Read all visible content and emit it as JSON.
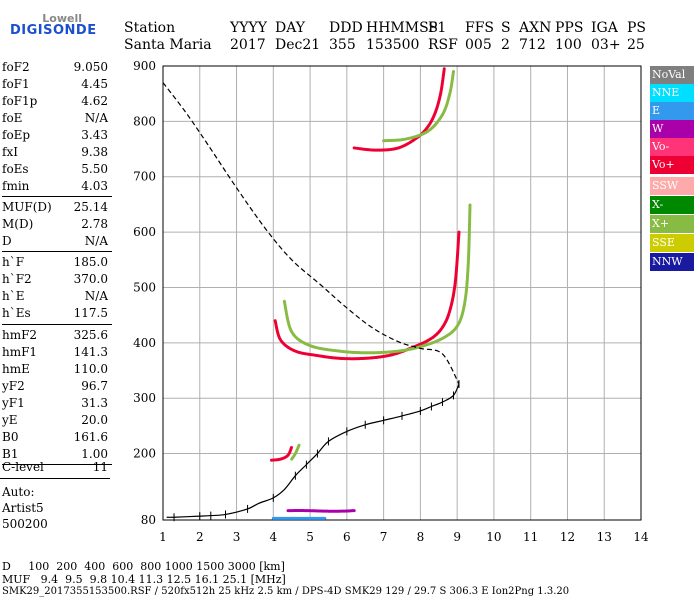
{
  "brand": {
    "line1": "Lowell",
    "line2": "DIGISONDE"
  },
  "header": {
    "labels": [
      "Station",
      "YYYY",
      "DAY",
      "DDD",
      "HHMMSS",
      "P1",
      "FFS",
      "S",
      "AXN",
      "PPS",
      "IGA",
      "PS"
    ],
    "values": [
      "Santa Maria",
      "2017",
      "Dec21",
      "355",
      "153500",
      "RSF",
      "005",
      "2",
      "712",
      "100",
      "03+",
      "25"
    ]
  },
  "params": [
    {
      "k": "foF2",
      "v": "9.050"
    },
    {
      "k": "foF1",
      "v": "4.45"
    },
    {
      "k": "foF1p",
      "v": "4.62"
    },
    {
      "k": "foE",
      "v": "N/A"
    },
    {
      "k": "foEp",
      "v": "3.43"
    },
    {
      "k": "fxI",
      "v": "9.38"
    },
    {
      "k": "foEs",
      "v": "5.50"
    },
    {
      "k": "fmin",
      "v": "4.03"
    },
    {
      "k": "MUF(D)",
      "v": "25.14"
    },
    {
      "k": "M(D)",
      "v": "2.78"
    },
    {
      "k": "D",
      "v": "N/A"
    },
    {
      "k": "h`F",
      "v": "185.0"
    },
    {
      "k": "h`F2",
      "v": "370.0"
    },
    {
      "k": "h`E",
      "v": "N/A"
    },
    {
      "k": "h`Es",
      "v": "117.5"
    },
    {
      "k": "hmF2",
      "v": "325.6"
    },
    {
      "k": "hmF1",
      "v": "141.3"
    },
    {
      "k": "hmE",
      "v": "110.0"
    },
    {
      "k": "yF2",
      "v": "96.7"
    },
    {
      "k": "yF1",
      "v": "31.3"
    },
    {
      "k": "yE",
      "v": "20.0"
    },
    {
      "k": "B0",
      "v": "161.6"
    },
    {
      "k": "B1",
      "v": "1.00"
    },
    {
      "k": "C-level",
      "v": "11"
    }
  ],
  "auto": {
    "line1": "Auto:",
    "line2": "Artist5",
    "line3": "500200"
  },
  "legend": [
    {
      "label": "NoVal",
      "color": "#7f7f7f"
    },
    {
      "label": "NNE",
      "color": "#00dfff"
    },
    {
      "label": "E",
      "color": "#3399ee"
    },
    {
      "label": "W",
      "color": "#aa00aa"
    },
    {
      "label": "Vo-",
      "color": "#ff3377"
    },
    {
      "label": "Vo+",
      "color": "#ee0033"
    },
    {
      "label": "SSW",
      "color": "#ffaaaa"
    },
    {
      "label": "X-",
      "color": "#008800"
    },
    {
      "label": "X+",
      "color": "#88bb44"
    },
    {
      "label": "SSE",
      "color": "#cccc00"
    },
    {
      "label": "NNW",
      "color": "#1a1aa0"
    }
  ],
  "bottom": {
    "d_row": "D     100  200  400  600  800 1000 1500 3000 [km]",
    "muf_row": "MUF   9.4  9.5  9.8 10.4 11.3 12.5 16.1 25.1 [MHz]",
    "footer": "SMK29_2017355153500.RSF / 520fx512h 25 kHz 2.5 km / DPS-4D SMK29 129 / 29.7 S 306.3 E Ion2Png 1.3.20"
  },
  "chart_data": {
    "type": "scatter",
    "xlim": [
      1,
      14
    ],
    "ylim": [
      80,
      900
    ],
    "xticks": [
      1,
      2,
      3,
      4,
      5,
      6,
      7,
      8,
      9,
      10,
      11,
      12,
      13,
      14
    ],
    "yticks": [
      80,
      200,
      300,
      400,
      500,
      600,
      700,
      800,
      900
    ],
    "grid": true,
    "profile": {
      "x": [
        1.1,
        1.3,
        2.0,
        2.3,
        2.7,
        3.3,
        3.6,
        4.0,
        4.3,
        4.6,
        4.9,
        5.2,
        5.5,
        6.0,
        6.5,
        7.0,
        7.5,
        8.0,
        8.3,
        8.6,
        8.9,
        9.05
      ],
      "y": [
        85,
        85,
        87,
        88,
        90,
        100,
        110,
        120,
        135,
        160,
        180,
        200,
        222,
        240,
        252,
        260,
        268,
        277,
        285,
        293,
        305,
        325.6
      ]
    },
    "profile_ticks": [
      1.3,
      2.0,
      2.3,
      2.7,
      3.3,
      4.0,
      4.6,
      4.9,
      5.2,
      5.5,
      6.0,
      6.5,
      7.0,
      7.5,
      8.0,
      8.3,
      8.6,
      8.9,
      9.05
    ],
    "upper": {
      "x": [
        1.0,
        1.6,
        2.2,
        3.0,
        3.8,
        4.5,
        5.3,
        6.0,
        6.7,
        7.4,
        8.0,
        8.6,
        9.05
      ],
      "y": [
        870,
        818,
        760,
        680,
        605,
        550,
        504,
        463,
        427,
        402,
        390,
        380,
        325.6
      ]
    },
    "traces": [
      {
        "name": "Vo+",
        "x": [
          4.05,
          4.2,
          4.6,
          5.2,
          5.8,
          6.5,
          7.2,
          7.8,
          8.3,
          8.6,
          8.8,
          8.95,
          9.05
        ],
        "y": [
          440,
          405,
          385,
          377,
          372,
          372,
          378,
          392,
          408,
          428,
          458,
          510,
          600
        ]
      },
      {
        "name": "X+",
        "x": [
          4.3,
          4.5,
          5.0,
          5.8,
          6.6,
          7.4,
          8.0,
          8.6,
          9.0,
          9.2,
          9.3,
          9.35
        ],
        "y": [
          475,
          420,
          395,
          385,
          382,
          385,
          393,
          408,
          430,
          470,
          540,
          650
        ]
      },
      {
        "name": "Vo+",
        "x": [
          6.2,
          6.8,
          7.4,
          7.9,
          8.2,
          8.4,
          8.55,
          8.65
        ],
        "y": [
          752,
          748,
          752,
          770,
          790,
          815,
          850,
          895
        ]
      },
      {
        "name": "X+",
        "x": [
          7.0,
          7.6,
          8.2,
          8.6,
          8.8,
          8.9
        ],
        "y": [
          765,
          768,
          782,
          812,
          850,
          890
        ]
      },
      {
        "name": "Vo+",
        "x": [
          3.95,
          4.2,
          4.4,
          4.5
        ],
        "y": [
          188,
          190,
          197,
          212
        ]
      },
      {
        "name": "X+",
        "x": [
          4.5,
          4.6,
          4.7
        ],
        "y": [
          190,
          200,
          215
        ]
      },
      {
        "name": "W",
        "x": [
          4.4,
          4.9,
          5.4,
          5.9,
          6.2
        ],
        "y": [
          97,
          97,
          96,
          96,
          97
        ]
      },
      {
        "name": "E",
        "x": [
          4.0,
          4.5,
          5.0,
          5.4
        ],
        "y": [
          83,
          83,
          83,
          83
        ]
      }
    ]
  }
}
